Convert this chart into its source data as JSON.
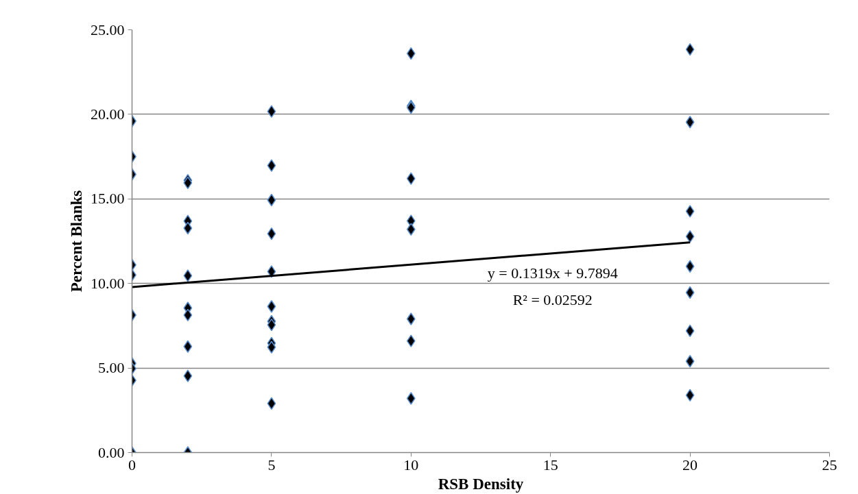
{
  "chart_data": {
    "type": "scatter",
    "xlabel": "RSB Density",
    "ylabel": "Percent Blanks",
    "xlim": [
      0,
      25
    ],
    "xticks": [
      0,
      5,
      10,
      15,
      20,
      25
    ],
    "ylim": [
      0,
      25
    ],
    "yticks": [
      {
        "value": 0,
        "label": "0.00"
      },
      {
        "value": 5,
        "label": "5.00"
      },
      {
        "value": 10,
        "label": "10.00"
      },
      {
        "value": 15,
        "label": "15.00"
      },
      {
        "value": 20,
        "label": "20.00"
      },
      {
        "value": 25,
        "label": "25.00"
      }
    ],
    "grid": "y",
    "series": [
      {
        "marker": "diamond",
        "color": "#000000",
        "x": [
          0,
          0,
          0,
          0,
          0,
          0,
          0,
          0,
          0,
          0,
          2,
          2,
          2,
          2,
          2,
          2,
          2,
          2,
          2,
          2,
          5,
          5,
          5,
          5,
          5,
          5,
          5,
          5,
          5,
          5,
          5,
          10,
          10,
          10,
          10,
          10,
          10,
          10,
          10,
          10,
          20,
          20,
          20,
          20,
          20,
          20,
          20,
          20,
          20
        ],
        "values": [
          19.6,
          17.5,
          16.45,
          11.1,
          10.5,
          8.13,
          5.27,
          4.97,
          4.27,
          0,
          16.1,
          15.95,
          13.69,
          13.27,
          10.46,
          8.55,
          8.13,
          6.27,
          4.53,
          0,
          20.17,
          16.97,
          14.93,
          12.94,
          10.7,
          8.64,
          7.76,
          7.55,
          6.47,
          6.23,
          2.9,
          23.6,
          20.5,
          20.4,
          16.2,
          13.7,
          13.2,
          7.9,
          6.6,
          3.2,
          23.84,
          19.54,
          14.27,
          12.78,
          11.01,
          9.46,
          7.2,
          5.4,
          3.39
        ]
      },
      {
        "type": "line",
        "color": "#000000",
        "x": [
          0,
          20
        ],
        "values": [
          9.79,
          12.43
        ]
      }
    ],
    "annotations": [
      "y = 0.1319x + 9.7894",
      "R² = 0.02592"
    ]
  }
}
